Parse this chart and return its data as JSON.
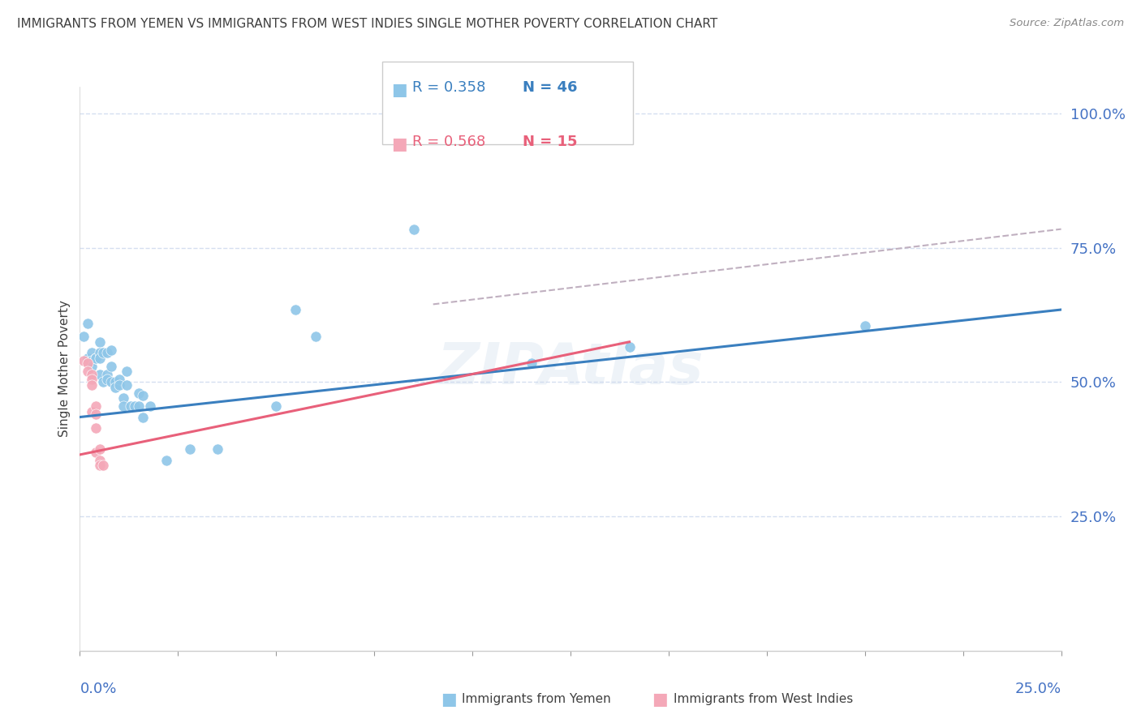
{
  "title": "IMMIGRANTS FROM YEMEN VS IMMIGRANTS FROM WEST INDIES SINGLE MOTHER POVERTY CORRELATION CHART",
  "source": "Source: ZipAtlas.com",
  "ylabel": "Single Mother Poverty",
  "ytick_labels": [
    "100.0%",
    "75.0%",
    "50.0%",
    "25.0%"
  ],
  "ytick_values": [
    1.0,
    0.75,
    0.5,
    0.25
  ],
  "xlim": [
    0.0,
    0.25
  ],
  "ylim": [
    0.0,
    1.05
  ],
  "watermark": "ZIPAtlas",
  "legend_blue_r": "R = 0.358",
  "legend_blue_n": "N = 46",
  "legend_pink_r": "R = 0.568",
  "legend_pink_n": "N = 15",
  "blue_scatter_color": "#8ec6e8",
  "pink_scatter_color": "#f4a8b8",
  "blue_line_color": "#3a7fbf",
  "pink_line_color": "#e8607a",
  "dashed_line_color": "#c0b0c0",
  "grid_color": "#d5dff0",
  "axis_label_color": "#4472c4",
  "title_color": "#404040",
  "scatter_blue": [
    [
      0.001,
      0.585
    ],
    [
      0.002,
      0.545
    ],
    [
      0.002,
      0.61
    ],
    [
      0.003,
      0.555
    ],
    [
      0.003,
      0.54
    ],
    [
      0.003,
      0.53
    ],
    [
      0.004,
      0.545
    ],
    [
      0.004,
      0.545
    ],
    [
      0.004,
      0.545
    ],
    [
      0.005,
      0.575
    ],
    [
      0.005,
      0.555
    ],
    [
      0.005,
      0.545
    ],
    [
      0.005,
      0.515
    ],
    [
      0.006,
      0.555
    ],
    [
      0.006,
      0.5
    ],
    [
      0.007,
      0.555
    ],
    [
      0.007,
      0.515
    ],
    [
      0.007,
      0.505
    ],
    [
      0.008,
      0.56
    ],
    [
      0.008,
      0.53
    ],
    [
      0.008,
      0.5
    ],
    [
      0.009,
      0.5
    ],
    [
      0.009,
      0.49
    ],
    [
      0.01,
      0.505
    ],
    [
      0.01,
      0.495
    ],
    [
      0.011,
      0.47
    ],
    [
      0.011,
      0.455
    ],
    [
      0.012,
      0.52
    ],
    [
      0.012,
      0.495
    ],
    [
      0.013,
      0.455
    ],
    [
      0.014,
      0.455
    ],
    [
      0.015,
      0.455
    ],
    [
      0.015,
      0.48
    ],
    [
      0.016,
      0.475
    ],
    [
      0.016,
      0.435
    ],
    [
      0.018,
      0.455
    ],
    [
      0.022,
      0.355
    ],
    [
      0.028,
      0.375
    ],
    [
      0.035,
      0.375
    ],
    [
      0.05,
      0.455
    ],
    [
      0.055,
      0.635
    ],
    [
      0.06,
      0.585
    ],
    [
      0.085,
      0.785
    ],
    [
      0.115,
      0.535
    ],
    [
      0.14,
      0.565
    ],
    [
      0.2,
      0.605
    ]
  ],
  "scatter_pink": [
    [
      0.001,
      0.54
    ],
    [
      0.002,
      0.535
    ],
    [
      0.002,
      0.52
    ],
    [
      0.003,
      0.515
    ],
    [
      0.003,
      0.505
    ],
    [
      0.003,
      0.495
    ],
    [
      0.003,
      0.445
    ],
    [
      0.004,
      0.455
    ],
    [
      0.004,
      0.44
    ],
    [
      0.004,
      0.415
    ],
    [
      0.004,
      0.37
    ],
    [
      0.005,
      0.375
    ],
    [
      0.005,
      0.355
    ],
    [
      0.005,
      0.345
    ],
    [
      0.006,
      0.345
    ]
  ],
  "blue_line_x": [
    0.0,
    0.25
  ],
  "blue_line_y": [
    0.435,
    0.635
  ],
  "pink_line_x": [
    0.0,
    0.14
  ],
  "pink_line_y": [
    0.365,
    0.575
  ],
  "dashed_line_x": [
    0.09,
    0.25
  ],
  "dashed_line_y": [
    0.645,
    0.785
  ]
}
